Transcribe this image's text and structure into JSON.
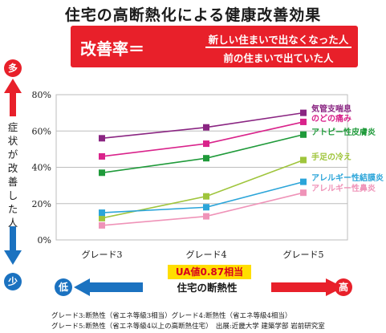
{
  "title": "住宅の高断熱化による健康改善効果",
  "formula": {
    "label": "改善率＝",
    "numerator": "新しい住まいで出なくなった人",
    "denominator": "前の住まいで出ていた人"
  },
  "side": {
    "top": "多",
    "bottom": "少",
    "label": "症状が改善した人"
  },
  "ua_badge": "UA値0.87相当",
  "insulation": {
    "low": "低",
    "high": "高",
    "label": "住宅の断熱性"
  },
  "footnotes": [
    "グレード3:断熱性（省エネ等級3相当）グレード4:断熱性（省エネ等級4相当）",
    "グレード5:断熱性（省エネ等級4以上の高断熱住宅）　出展:近畿大学 建築学部 岩前研究室"
  ],
  "colors": {
    "red": "#e8202a",
    "blue": "#1b72c0",
    "yellow": "#ffde00"
  },
  "chart_data": {
    "type": "line",
    "categories": [
      "グレード3",
      "グレード4",
      "グレード5"
    ],
    "ylim": [
      0,
      80
    ],
    "yticks": [
      "0%",
      "20%",
      "40%",
      "60%",
      "80%"
    ],
    "grid": true,
    "series": [
      {
        "name": "気管支喘息",
        "values": [
          56,
          62,
          70
        ],
        "color": "#8a2582"
      },
      {
        "name": "のどの痛み",
        "values": [
          46,
          53,
          65
        ],
        "color": "#d9238b"
      },
      {
        "name": "アトピー性皮膚炎",
        "values": [
          37,
          45,
          58
        ],
        "color": "#1f9a3a"
      },
      {
        "name": "手足の冷え",
        "values": [
          12,
          24,
          44
        ],
        "color": "#9fc53c"
      },
      {
        "name": "アレルギー性結膜炎",
        "values": [
          15,
          18,
          32
        ],
        "color": "#2ba5d9"
      },
      {
        "name": "アレルギー性鼻炎",
        "values": [
          8,
          13,
          26
        ],
        "color": "#ef93b8"
      }
    ]
  }
}
